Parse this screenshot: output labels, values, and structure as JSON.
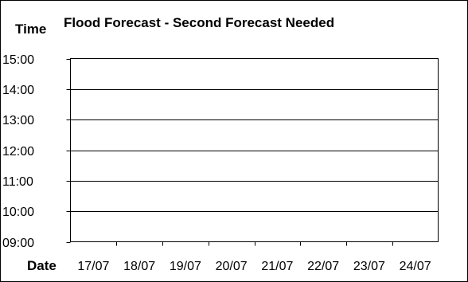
{
  "chart_data": {
    "type": "line",
    "title": "Flood Forecast - Second Forecast Needed",
    "ylabel": "Time",
    "xlabel": "Date",
    "categories": [
      "17/07",
      "18/07",
      "19/07",
      "20/07",
      "21/07",
      "22/07",
      "23/07",
      "24/07"
    ],
    "y_ticks": [
      "15:00",
      "14:00",
      "13:00",
      "12:00",
      "11:00",
      "10:00",
      "09:00"
    ],
    "ylim": [
      "09:00",
      "15:00"
    ],
    "series": [],
    "grid": true,
    "legend": "none"
  }
}
